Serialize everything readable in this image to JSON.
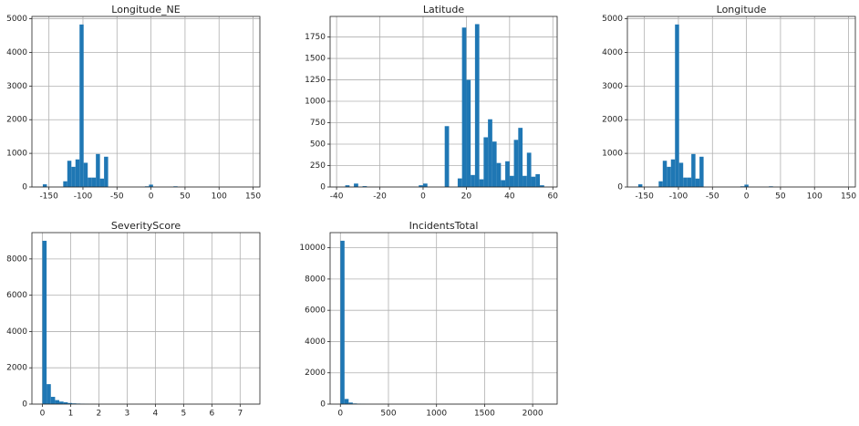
{
  "chart_data": [
    {
      "type": "histogram",
      "title": "Longitude_NE",
      "color": "#1f77b4",
      "grid": true,
      "bins": [
        -159,
        -153,
        -147,
        -141,
        -135,
        -129,
        -123,
        -117,
        -111,
        -105,
        -99,
        -93,
        -87,
        -81,
        -75,
        -69,
        -63,
        -57,
        -51,
        -45,
        -39,
        -33,
        -27,
        -21,
        -15,
        -9,
        -3,
        3,
        9,
        15,
        21,
        27,
        33,
        39,
        45,
        51,
        57,
        63,
        69,
        75,
        81,
        87,
        93,
        99,
        105,
        111,
        117,
        123,
        129,
        135,
        141
      ],
      "counts": [
        80,
        0,
        0,
        0,
        0,
        170,
        780,
        600,
        820,
        4830,
        720,
        280,
        280,
        980,
        250,
        900,
        0,
        0,
        0,
        0,
        0,
        0,
        0,
        0,
        0,
        20,
        70,
        0,
        0,
        0,
        0,
        0,
        20,
        0,
        0,
        0,
        0,
        0,
        0,
        0,
        0,
        0,
        0,
        0,
        0,
        0,
        0,
        0,
        0,
        0
      ],
      "xlim": [
        -175,
        160
      ],
      "xticks": [
        -150,
        -100,
        -50,
        0,
        50,
        100,
        150
      ],
      "ylim": [
        0,
        5070
      ],
      "yticks": [
        0,
        1000,
        2000,
        3000,
        4000,
        5000
      ]
    },
    {
      "type": "histogram",
      "title": "Latitude",
      "color": "#1f77b4",
      "grid": true,
      "bins": [
        -38,
        -36,
        -34,
        -32,
        -30,
        -28,
        -26,
        -24,
        -22,
        -20,
        -18,
        -16,
        -14,
        -12,
        -10,
        -8,
        -6,
        -4,
        -2,
        0,
        2,
        4,
        6,
        8,
        10,
        12,
        14,
        16,
        18,
        20,
        22,
        24,
        26,
        28,
        30,
        32,
        34,
        36,
        38,
        40,
        42,
        44,
        46,
        48,
        50,
        52,
        54,
        56,
        58
      ],
      "counts": [
        0,
        20,
        0,
        40,
        0,
        10,
        0,
        0,
        0,
        0,
        0,
        0,
        0,
        0,
        0,
        0,
        0,
        0,
        20,
        40,
        0,
        0,
        0,
        0,
        710,
        0,
        0,
        100,
        1860,
        1250,
        140,
        1900,
        90,
        580,
        790,
        530,
        280,
        80,
        300,
        130,
        550,
        690,
        130,
        400,
        120,
        150,
        20,
        0
      ],
      "xlim": [
        -43,
        62
      ],
      "xticks": [
        -40,
        -20,
        0,
        20,
        40,
        60
      ],
      "ylim": [
        0,
        1990
      ],
      "yticks": [
        0,
        250,
        500,
        750,
        1000,
        1250,
        1500,
        1750
      ]
    },
    {
      "type": "histogram",
      "title": "Longitude",
      "color": "#1f77b4",
      "grid": true,
      "bins": [
        -159,
        -153,
        -147,
        -141,
        -135,
        -129,
        -123,
        -117,
        -111,
        -105,
        -99,
        -93,
        -87,
        -81,
        -75,
        -69,
        -63,
        -57,
        -51,
        -45,
        -39,
        -33,
        -27,
        -21,
        -15,
        -9,
        -3,
        3,
        9,
        15,
        21,
        27,
        33,
        39,
        45,
        51,
        57,
        63,
        69,
        75,
        81,
        87,
        93,
        99,
        105,
        111,
        117,
        123,
        129,
        135,
        141
      ],
      "counts": [
        80,
        0,
        0,
        0,
        0,
        170,
        780,
        600,
        820,
        4830,
        720,
        280,
        280,
        980,
        250,
        900,
        0,
        0,
        0,
        0,
        0,
        0,
        0,
        0,
        0,
        20,
        70,
        0,
        0,
        0,
        0,
        0,
        20,
        0,
        0,
        0,
        0,
        0,
        0,
        0,
        0,
        0,
        0,
        0,
        0,
        0,
        0,
        0,
        0,
        0
      ],
      "xlim": [
        -175,
        160
      ],
      "xticks": [
        -150,
        -100,
        -50,
        0,
        50,
        100,
        150
      ],
      "ylim": [
        0,
        5070
      ],
      "yticks": [
        0,
        1000,
        2000,
        3000,
        4000,
        5000
      ]
    },
    {
      "type": "histogram",
      "title": "SeverityScore",
      "color": "#1f77b4",
      "grid": true,
      "bins": [
        0,
        0.15,
        0.3,
        0.45,
        0.6,
        0.75,
        0.9,
        1.05,
        1.2,
        1.35,
        1.5,
        1.65,
        1.8,
        1.95,
        2.1,
        2.25,
        2.4,
        2.55,
        2.7,
        2.85,
        3,
        3.15,
        3.3,
        3.45,
        3.6,
        3.75,
        3.9,
        4.05,
        4.2,
        4.35,
        4.5,
        4.65,
        4.8,
        4.95,
        5.1,
        5.25,
        5.4,
        5.55,
        5.7,
        5.85,
        6,
        6.15,
        6.3,
        6.45,
        6.6,
        6.75,
        6.9,
        7.05,
        7.2,
        7.35
      ],
      "counts": [
        9000,
        1100,
        400,
        220,
        140,
        100,
        60,
        40,
        30,
        20,
        10,
        0,
        0,
        0,
        0,
        0,
        0,
        0,
        0,
        0,
        0,
        0,
        0,
        0,
        0,
        0,
        0,
        0,
        0,
        0,
        0,
        0,
        0,
        0,
        0,
        0,
        0,
        0,
        0,
        0,
        0,
        0,
        0,
        0,
        0,
        0,
        0,
        0,
        0
      ],
      "xlim": [
        -0.37,
        7.7
      ],
      "xticks": [
        0,
        1,
        2,
        3,
        4,
        5,
        6,
        7
      ],
      "ylim": [
        0,
        9450
      ],
      "yticks": [
        0,
        2000,
        4000,
        6000,
        8000
      ]
    },
    {
      "type": "histogram",
      "title": "IncidentsTotal",
      "color": "#1f77b4",
      "grid": true,
      "bins": [
        0,
        43,
        86,
        129,
        172,
        215,
        258,
        301,
        344,
        387,
        430,
        473,
        516,
        559,
        602,
        645,
        688,
        731,
        774,
        817,
        860,
        903,
        946,
        989,
        1032,
        1075,
        1118,
        1161,
        1204,
        1247,
        1290,
        1333,
        1376,
        1419,
        1462,
        1505,
        1548,
        1591,
        1634,
        1677,
        1720,
        1763,
        1806,
        1849,
        1892,
        1935,
        1978,
        2021,
        2064,
        2107,
        2150
      ],
      "counts": [
        10450,
        330,
        100,
        40,
        20,
        10,
        0,
        0,
        0,
        0,
        0,
        0,
        0,
        0,
        0,
        0,
        0,
        0,
        0,
        0,
        0,
        0,
        0,
        0,
        0,
        0,
        0,
        0,
        0,
        0,
        0,
        0,
        0,
        0,
        0,
        0,
        0,
        0,
        0,
        0,
        0,
        0,
        0,
        0,
        0,
        0,
        0,
        0,
        0,
        0
      ],
      "xlim": [
        -107,
        2255
      ],
      "xticks": [
        0,
        500,
        1000,
        1500,
        2000
      ],
      "ylim": [
        0,
        10970
      ],
      "yticks": [
        0,
        2000,
        4000,
        6000,
        8000,
        10000
      ]
    }
  ]
}
